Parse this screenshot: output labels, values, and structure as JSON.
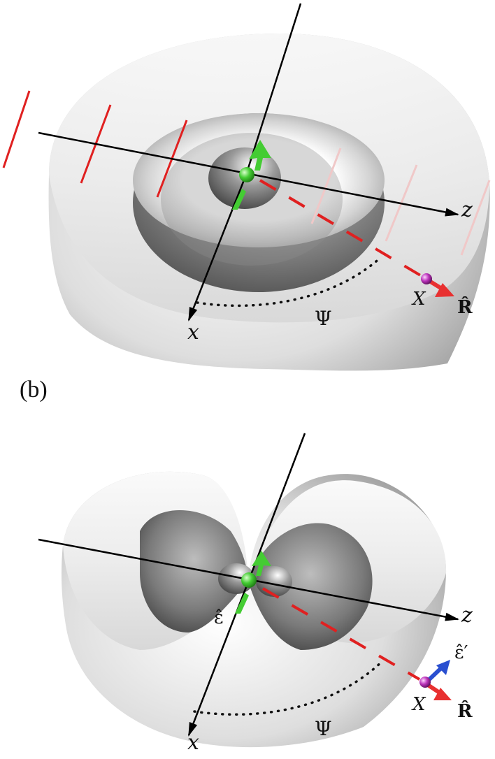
{
  "panel_b_label": "(b)",
  "top_panel": {
    "axis_x": "x",
    "axis_z": "z",
    "wavefunction": "Ψ",
    "ion": "X",
    "direction": "R̂"
  },
  "bottom_panel": {
    "axis_x": "x",
    "axis_z": "z",
    "wavefunction": "Ψ",
    "ion": "X",
    "direction": "R̂",
    "polarization": "ε̂",
    "polarization_prime": "ε̂′"
  },
  "colors": {
    "dashed_line": "#e02020",
    "faint_lines": "#f0c8c8",
    "electron": "#44cc33",
    "ion": "#bb33bb",
    "r_arrow": "#e83030",
    "eps_prime_arrow": "#2a4fd0",
    "axes": "#000000"
  }
}
